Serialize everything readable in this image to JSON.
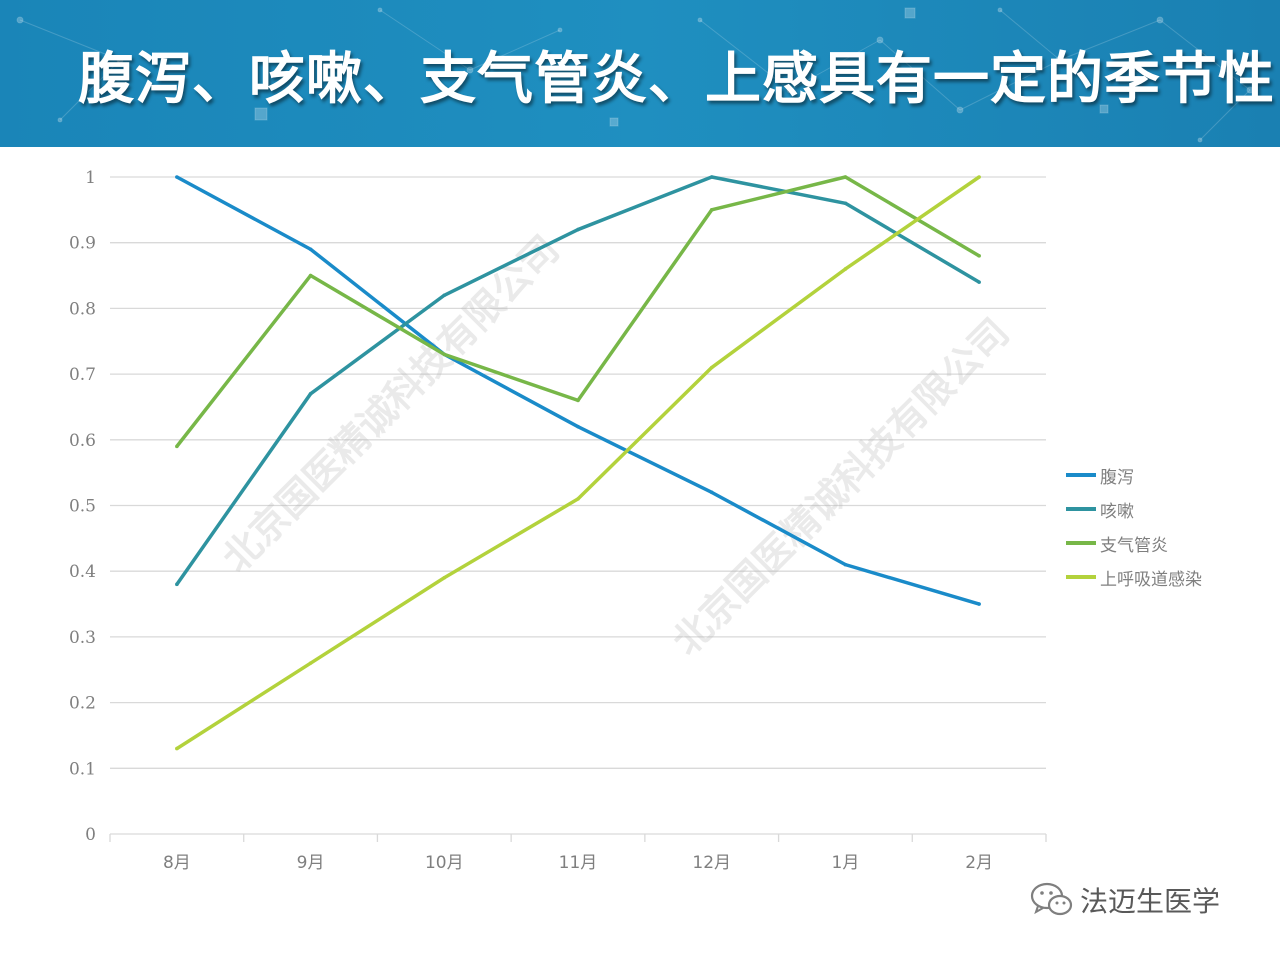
{
  "header": {
    "title": "腹泻、咳嗽、支气管炎、上感具有一定的季节性"
  },
  "colors": {
    "banner": "#1f8fc0",
    "grid": "#d9d9d9",
    "axis_text": "#7f7f7f"
  },
  "watermarks": [
    "北京国医精诚科技有限公司",
    "北京国医精诚科技有限公司"
  ],
  "footer": {
    "icon": "wechat-icon",
    "text": "法迈生医学"
  },
  "chart_data": {
    "type": "line",
    "categories": [
      "8月",
      "9月",
      "10月",
      "11月",
      "12月",
      "1月",
      "2月"
    ],
    "ylim": [
      0,
      1
    ],
    "yticks": [
      "0",
      "0.1",
      "0.2",
      "0.3",
      "0.4",
      "0.5",
      "0.6",
      "0.7",
      "0.8",
      "0.9",
      "1"
    ],
    "grid": true,
    "legend_position": "right",
    "series": [
      {
        "name": "腹泻",
        "color": "#1a8bc9",
        "values": [
          1.0,
          0.89,
          0.73,
          0.62,
          0.52,
          0.41,
          0.35
        ]
      },
      {
        "name": "咳嗽",
        "color": "#2e93a0",
        "values": [
          0.38,
          0.67,
          0.82,
          0.92,
          1.0,
          0.96,
          0.84
        ]
      },
      {
        "name": "支气管炎",
        "color": "#77b748",
        "values": [
          0.59,
          0.85,
          0.73,
          0.66,
          0.95,
          1.0,
          0.88
        ]
      },
      {
        "name": "上呼吸道感染",
        "color": "#b3d23c",
        "values": [
          0.13,
          0.26,
          0.39,
          0.51,
          0.71,
          0.86,
          1.0
        ]
      }
    ]
  }
}
